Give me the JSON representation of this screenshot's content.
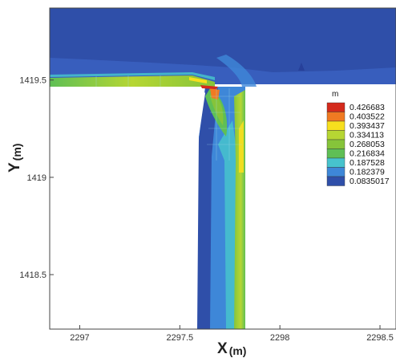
{
  "chart_data": {
    "type": "heatmap",
    "title": "",
    "xlabel": "X",
    "xlabel_unit": "(m)",
    "ylabel": "Y",
    "ylabel_unit": "(m)",
    "xlim": [
      2296.85,
      2298.58
    ],
    "ylim": [
      1418.22,
      1419.87
    ],
    "x_ticks": [
      {
        "value": 2297,
        "label": "2297"
      },
      {
        "value": 2297.5,
        "label": "2297.5"
      },
      {
        "value": 2298,
        "label": "2298"
      },
      {
        "value": 2298.5,
        "label": "2298.5"
      }
    ],
    "y_ticks": [
      {
        "value": 1418.5,
        "label": "1418.5"
      },
      {
        "value": 1419,
        "label": "1419"
      },
      {
        "value": 1419.5,
        "label": "1419.5"
      }
    ],
    "legend": {
      "title": "m",
      "placement": "right",
      "levels": [
        {
          "label": "0.426683",
          "color": "#d42a1c"
        },
        {
          "label": "0.403522",
          "color": "#f07a22"
        },
        {
          "label": "0.393437",
          "color": "#f7df1e"
        },
        {
          "label": "0.334113",
          "color": "#b6d633"
        },
        {
          "label": "0.268053",
          "color": "#86c43a"
        },
        {
          "label": "0.216834",
          "color": "#5fbf55"
        },
        {
          "label": "0.187528",
          "color": "#47c3cd"
        },
        {
          "label": "0.182379",
          "color": "#3e87d8"
        },
        {
          "label": "0.0835017",
          "color": "#2f4fa9"
        }
      ]
    },
    "regions": [
      {
        "name": "upper-channel",
        "x": [
          2296.85,
          2298.58
        ],
        "y": [
          1419.48,
          1419.87
        ],
        "level": 0.0835017
      },
      {
        "name": "vertical-channel",
        "x": [
          2297.62,
          2297.85
        ],
        "y": [
          1418.22,
          1419.48
        ],
        "level": 0.182379
      },
      {
        "name": "jet-core",
        "x": [
          2297.8,
          2297.85
        ],
        "y": [
          1418.22,
          1419.3
        ],
        "level": 0.268053
      },
      {
        "name": "corner-hotspot",
        "x": [
          2297.66,
          2297.7
        ],
        "y": [
          1419.42,
          1419.48
        ],
        "level": 0.426683
      }
    ]
  }
}
